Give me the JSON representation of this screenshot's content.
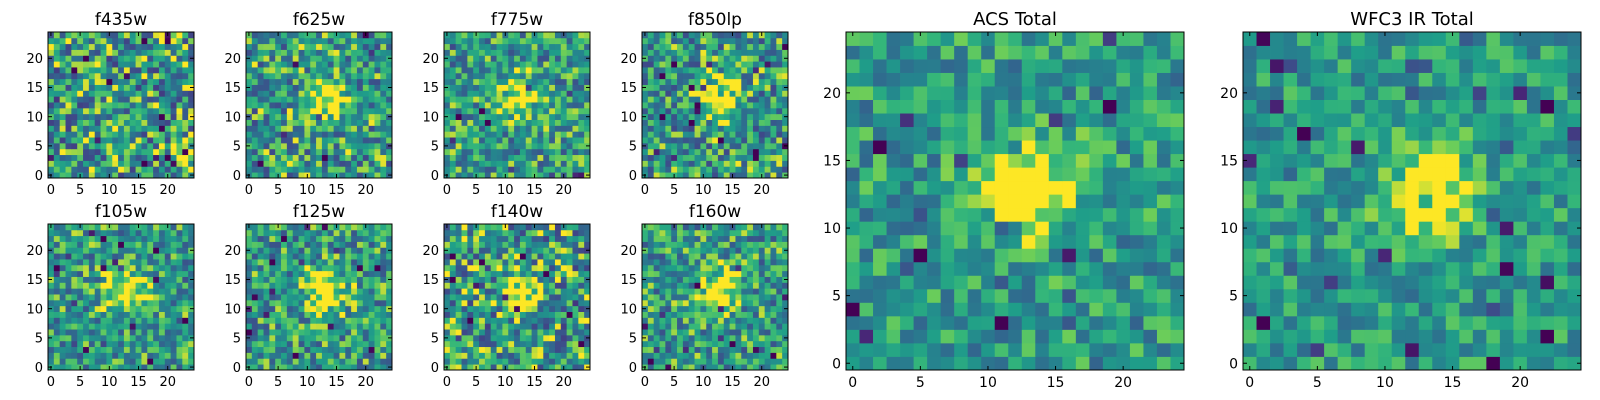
{
  "chart_data": [
    {
      "type": "heatmap",
      "title": "f435w",
      "xlim": [
        0,
        24
      ],
      "ylim": [
        0,
        24
      ],
      "xticks": [
        "0",
        "5",
        "10",
        "15",
        "20"
      ],
      "yticks": [
        "0",
        "5",
        "10",
        "15",
        "20"
      ],
      "colormap": "viridis",
      "grid": "off",
      "legend": "none",
      "source_peak": null,
      "noise": 0.55
    },
    {
      "type": "heatmap",
      "title": "f625w",
      "xlim": [
        0,
        24
      ],
      "ylim": [
        0,
        24
      ],
      "xticks": [
        "0",
        "5",
        "10",
        "15",
        "20"
      ],
      "yticks": [
        "0",
        "5",
        "10",
        "15",
        "20"
      ],
      "colormap": "viridis",
      "grid": "off",
      "legend": "none",
      "source_peak": [
        13,
        13
      ],
      "noise": 0.5
    },
    {
      "type": "heatmap",
      "title": "f775w",
      "xlim": [
        0,
        24
      ],
      "ylim": [
        0,
        24
      ],
      "xticks": [
        "0",
        "5",
        "10",
        "15",
        "20"
      ],
      "yticks": [
        "0",
        "5",
        "10",
        "15",
        "20"
      ],
      "colormap": "viridis",
      "grid": "off",
      "legend": "none",
      "source_peak": [
        13,
        13
      ],
      "noise": 0.45
    },
    {
      "type": "heatmap",
      "title": "f850lp",
      "xlim": [
        0,
        24
      ],
      "ylim": [
        0,
        24
      ],
      "xticks": [
        "0",
        "5",
        "10",
        "15",
        "20"
      ],
      "yticks": [
        "0",
        "5",
        "10",
        "15",
        "20"
      ],
      "colormap": "viridis",
      "grid": "off",
      "legend": "none",
      "source_peak": [
        13,
        13
      ],
      "noise": 0.5
    },
    {
      "type": "heatmap",
      "title": "ACS Total",
      "xlim": [
        0,
        24
      ],
      "ylim": [
        0,
        24
      ],
      "xticks": [
        "0",
        "5",
        "10",
        "15",
        "20"
      ],
      "yticks": [
        "0",
        "5",
        "10",
        "15",
        "20"
      ],
      "colormap": "viridis",
      "grid": "off",
      "legend": "none",
      "source_peak": [
        13,
        13
      ],
      "noise": 0.35
    },
    {
      "type": "heatmap",
      "title": "f105w",
      "xlim": [
        0,
        24
      ],
      "ylim": [
        0,
        24
      ],
      "xticks": [
        "0",
        "5",
        "10",
        "15",
        "20"
      ],
      "yticks": [
        "0",
        "5",
        "10",
        "15",
        "20"
      ],
      "colormap": "viridis",
      "grid": "off",
      "legend": "none",
      "source_peak": [
        13,
        13
      ],
      "noise": 0.45
    },
    {
      "type": "heatmap",
      "title": "f125w",
      "xlim": [
        0,
        24
      ],
      "ylim": [
        0,
        24
      ],
      "xticks": [
        "0",
        "5",
        "10",
        "15",
        "20"
      ],
      "yticks": [
        "0",
        "5",
        "10",
        "15",
        "20"
      ],
      "colormap": "viridis",
      "grid": "off",
      "legend": "none",
      "source_peak": [
        13,
        13
      ],
      "noise": 0.45
    },
    {
      "type": "heatmap",
      "title": "f140w",
      "xlim": [
        0,
        24
      ],
      "ylim": [
        0,
        24
      ],
      "xticks": [
        "0",
        "5",
        "10",
        "15",
        "20"
      ],
      "yticks": [
        "0",
        "5",
        "10",
        "15",
        "20"
      ],
      "colormap": "viridis",
      "grid": "off",
      "legend": "none",
      "source_peak": [
        13,
        13
      ],
      "noise": 0.55
    },
    {
      "type": "heatmap",
      "title": "f160w",
      "xlim": [
        0,
        24
      ],
      "ylim": [
        0,
        24
      ],
      "xticks": [
        "0",
        "5",
        "10",
        "15",
        "20"
      ],
      "yticks": [
        "0",
        "5",
        "10",
        "15",
        "20"
      ],
      "colormap": "viridis",
      "grid": "off",
      "legend": "none",
      "source_peak": [
        13,
        13
      ],
      "noise": 0.45
    },
    {
      "type": "heatmap",
      "title": "WFC3 IR Total",
      "xlim": [
        0,
        24
      ],
      "ylim": [
        0,
        24
      ],
      "xticks": [
        "0",
        "5",
        "10",
        "15",
        "20"
      ],
      "yticks": [
        "0",
        "5",
        "10",
        "15",
        "20"
      ],
      "colormap": "viridis",
      "grid": "off",
      "legend": "none",
      "source_peak": [
        13,
        13
      ],
      "noise": 0.3
    }
  ],
  "colors": {
    "viridis_low": "#440154",
    "viridis_mid": "#21918c",
    "viridis_high": "#fde725"
  }
}
